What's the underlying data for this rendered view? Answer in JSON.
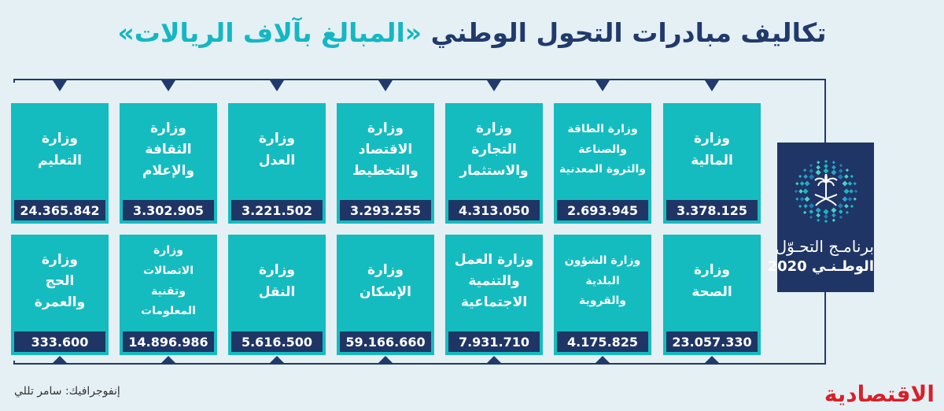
{
  "title": {
    "main": "تكاليف مبادرات التحول الوطني",
    "sub": "«المبالغ بآلاف الريالات»"
  },
  "colors": {
    "card": "#14bcc0",
    "value_bar": "#1f3565",
    "line": "#213a6b",
    "background": "#e4f0f4",
    "brand": "#d8202a"
  },
  "row1": [
    {
      "name": "وزارة\nالمالية",
      "value": "3.378.125"
    },
    {
      "name": "وزارة الطاقة\nوالصناعة\nوالثروة المعدنية",
      "value": "2.693.945"
    },
    {
      "name": "وزارة\nالتجارة\nوالاستثمار",
      "value": "4.313.050"
    },
    {
      "name": "وزارة\nالاقتصاد\nوالتخطيط",
      "value": "3.293.255"
    },
    {
      "name": "وزارة\nالعدل",
      "value": "3.221.502"
    },
    {
      "name": "وزارة\nالثقافة\nوالإعلام",
      "value": "3.302.905"
    },
    {
      "name": "وزارة\nالتعليم",
      "value": "24.365.842"
    }
  ],
  "row2": [
    {
      "name": "وزارة\nالصحة",
      "value": "23.057.330"
    },
    {
      "name": "وزارة الشؤون\nالبلدية\nوالقروية",
      "value": "4.175.825"
    },
    {
      "name": "وزارة العمل\nوالتنمية\nالاجتماعية",
      "value": "7.931.710"
    },
    {
      "name": "وزارة\nالإسكان",
      "value": "59.166.660"
    },
    {
      "name": "وزارة\nالنقل",
      "value": "5.616.500"
    },
    {
      "name": "وزارة\nالاتصالات\nوتقنية\nالمعلومات",
      "value": "14.896.986"
    },
    {
      "name": "وزارة\nالحج\nوالعمرة",
      "value": "333.600"
    }
  ],
  "logo": {
    "line1": "برنامـج التحـوّل",
    "line2": "الوطـنـي 2020"
  },
  "credit": "إنفوجرافيك: سامر تللي",
  "brand": "الاقتصادية"
}
